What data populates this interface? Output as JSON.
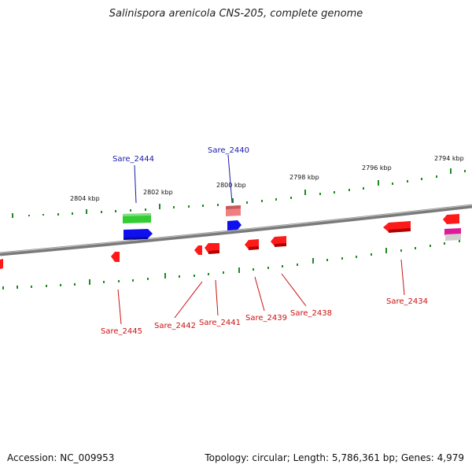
{
  "title": "Salinispora arenicola CNS-205, complete genome",
  "footer": {
    "accession": "Accession: NC_009953",
    "summary": "Topology: circular; Length: 5,786,361 bp; Genes: 4,979"
  },
  "scale_labels": [
    "2804 kbp",
    "2802 kbp",
    "2800 kbp",
    "2798 kbp",
    "2796 kbp",
    "2794 kbp"
  ],
  "genes": {
    "forward": [
      {
        "label": "Sare_2444",
        "color": "#1a1aa8"
      },
      {
        "label": "Sare_2440",
        "color": "#1a1aa8"
      }
    ],
    "reverse": [
      {
        "label": "Sare_2445",
        "color": "#cc1111"
      },
      {
        "label": "Sare_2442",
        "color": "#cc1111"
      },
      {
        "label": "Sare_2441",
        "color": "#cc1111"
      },
      {
        "label": "Sare_2439",
        "color": "#cc1111"
      },
      {
        "label": "Sare_2438",
        "color": "#cc1111"
      },
      {
        "label": "Sare_2434",
        "color": "#cc1111"
      }
    ]
  },
  "colors": {
    "backbone": "#8a8a8a",
    "tick": "#1f8a1f",
    "gene_red": "#ff1a1a",
    "gene_blue": "#1010ee",
    "gene_green": "#33cc33",
    "gene_pink": "#f08080",
    "gene_magenta": "#e0189a"
  }
}
